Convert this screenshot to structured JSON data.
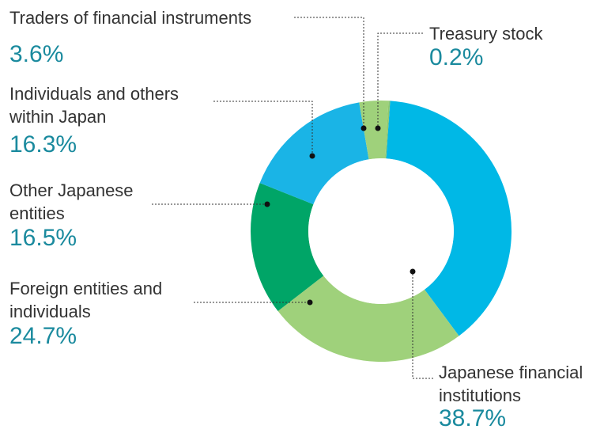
{
  "chart_data": {
    "type": "donut",
    "categories": [
      "Japanese financial institutions",
      "Foreign entities and individuals",
      "Other Japanese entities",
      "Individuals and others within Japan",
      "Traders of financial instruments",
      "Treasury stock"
    ],
    "values": [
      38.7,
      24.7,
      16.5,
      16.3,
      3.6,
      0.2
    ],
    "value_labels": [
      "38.7%",
      "24.7%",
      "16.5%",
      "16.3%",
      "3.6%",
      "0.2%"
    ],
    "colors": [
      "#00b8e6",
      "#9fd17b",
      "#00a567",
      "#1ab4e6",
      "#9fd17b",
      "#8fc86e"
    ]
  }
}
